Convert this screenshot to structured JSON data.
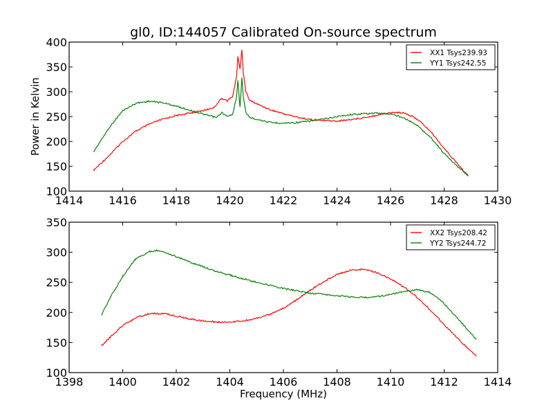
{
  "chart_data": [
    {
      "type": "line",
      "title": "gl0, ID:144057 Calibrated On-source spectrum",
      "xlabel": "",
      "ylabel": "Power in Kelvin",
      "xlim": [
        1414,
        1430
      ],
      "ylim": [
        100,
        400
      ],
      "xticks": [
        1414,
        1416,
        1418,
        1420,
        1422,
        1424,
        1426,
        1428,
        1430
      ],
      "yticks": [
        100,
        150,
        200,
        250,
        300,
        350,
        400
      ],
      "grid": false,
      "legend_position": "top-right",
      "series": [
        {
          "name": "XX1 Tsys239.93",
          "color": "#ff0000",
          "x": [
            1414.9,
            1415.5,
            1416,
            1416.5,
            1417,
            1417.5,
            1418,
            1418.5,
            1419,
            1419.4,
            1419.7,
            1419.9,
            1420.1,
            1420.25,
            1420.3,
            1420.38,
            1420.45,
            1420.5,
            1420.6,
            1420.75,
            1421,
            1421.5,
            1422,
            1422.5,
            1423,
            1423.5,
            1424,
            1424.5,
            1425,
            1425.5,
            1426,
            1426.5,
            1427,
            1427.5,
            1428,
            1428.5,
            1428.9
          ],
          "y": [
            141,
            172,
            200,
            221,
            235,
            245,
            252,
            257,
            262,
            268,
            287,
            282,
            290,
            330,
            372,
            345,
            386,
            340,
            300,
            282,
            276,
            264,
            256,
            249,
            244,
            242,
            241,
            244,
            248,
            253,
            258,
            258,
            245,
            220,
            186,
            155,
            130
          ]
        },
        {
          "name": "YY1 Tsys242.55",
          "color": "#008000",
          "x": [
            1414.9,
            1415.5,
            1416,
            1416.5,
            1417,
            1417.5,
            1418,
            1418.5,
            1419,
            1419.5,
            1419.7,
            1419.9,
            1420.1,
            1420.25,
            1420.3,
            1420.38,
            1420.45,
            1420.5,
            1420.6,
            1420.75,
            1421,
            1421.5,
            1422,
            1422.5,
            1423,
            1423.5,
            1424,
            1424.5,
            1425,
            1425.5,
            1426,
            1426.5,
            1427,
            1427.5,
            1428,
            1428.5,
            1428.9
          ],
          "y": [
            178,
            228,
            262,
            277,
            281,
            278,
            271,
            263,
            255,
            248,
            258,
            250,
            254,
            290,
            322,
            268,
            330,
            290,
            258,
            248,
            245,
            238,
            237,
            238,
            241,
            245,
            250,
            254,
            256,
            257,
            255,
            248,
            232,
            208,
            176,
            150,
            132
          ]
        }
      ]
    },
    {
      "type": "line",
      "title": "",
      "xlabel": "Frequency (MHz)",
      "ylabel": "",
      "xlim": [
        1398,
        1414
      ],
      "ylim": [
        100,
        350
      ],
      "xticks": [
        1398,
        1400,
        1402,
        1404,
        1406,
        1408,
        1410,
        1412,
        1414
      ],
      "yticks": [
        100,
        150,
        200,
        250,
        300,
        350
      ],
      "grid": false,
      "legend_position": "top-right",
      "series": [
        {
          "name": "XX2 Tsys208.42",
          "color": "#ff0000",
          "x": [
            1399.2,
            1399.6,
            1400,
            1400.5,
            1401,
            1401.5,
            1402,
            1402.5,
            1403,
            1403.5,
            1404,
            1404.5,
            1405,
            1405.5,
            1406,
            1406.5,
            1407,
            1407.5,
            1408,
            1408.5,
            1409,
            1409.5,
            1410,
            1410.5,
            1411,
            1411.5,
            1412,
            1412.5,
            1413.2
          ],
          "y": [
            144,
            162,
            178,
            191,
            198,
            198,
            194,
            189,
            186,
            184,
            184,
            186,
            190,
            197,
            207,
            221,
            237,
            251,
            263,
            270,
            272,
            266,
            256,
            242,
            225,
            203,
            180,
            157,
            127
          ]
        },
        {
          "name": "YY2 Tsys244.72",
          "color": "#008000",
          "x": [
            1399.2,
            1399.6,
            1400,
            1400.5,
            1401,
            1401.3,
            1402,
            1402.5,
            1403,
            1403.5,
            1404,
            1404.5,
            1405,
            1405.5,
            1406,
            1406.5,
            1407,
            1407.5,
            1408,
            1408.5,
            1409,
            1409.5,
            1410,
            1410.5,
            1411,
            1411.5,
            1412,
            1412.5,
            1413.2
          ],
          "y": [
            195,
            230,
            260,
            290,
            301,
            303,
            293,
            284,
            276,
            268,
            262,
            256,
            250,
            245,
            240,
            236,
            232,
            230,
            228,
            226,
            225,
            226,
            230,
            235,
            238,
            233,
            215,
            190,
            155
          ]
        }
      ]
    }
  ]
}
